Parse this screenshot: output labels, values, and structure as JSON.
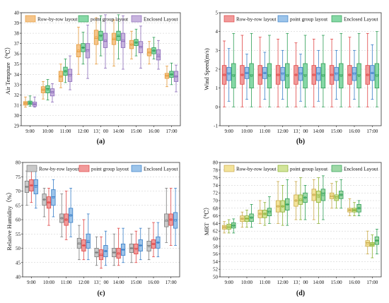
{
  "chart_data": [
    {
      "type": "box",
      "panel_label": "(a)",
      "ylabel": "Air Tempture（℃）",
      "ylim": [
        29,
        40
      ],
      "yticks": [
        29,
        30,
        31,
        32,
        33,
        34,
        35,
        36,
        37,
        38,
        39,
        40
      ],
      "categories": [
        "9:00",
        "10:00",
        "11:00",
        "12:00",
        "13：00",
        "14:00",
        "15:00",
        "16:00",
        "17:00"
      ],
      "legend": [
        {
          "name": "Row-by-row layout",
          "color": "#f5c58a"
        },
        {
          "name": "point group layout",
          "color": "#86d8a6"
        },
        {
          "name": "Enclosed Layout",
          "color": "#c7b3de"
        }
      ],
      "series": [
        {
          "name": "Row-by-row layout",
          "color": "#f5c58a",
          "stroke": "#e59a3a",
          "boxes": [
            [
              30.8,
              31.0,
              31.2,
              31.35,
              31.8
            ],
            [
              31.6,
              32.2,
              32.5,
              32.8,
              33.3
            ],
            [
              32.7,
              33.3,
              33.8,
              34.3,
              35.0
            ],
            [
              34.0,
              35.7,
              36.2,
              36.9,
              38.6
            ],
            [
              35.0,
              36.9,
              37.5,
              38.3,
              39.5
            ],
            [
              34.8,
              36.9,
              37.4,
              38.0,
              39.3
            ],
            [
              35.5,
              36.5,
              36.9,
              37.3,
              38.2
            ],
            [
              35.0,
              35.8,
              36.1,
              36.5,
              37.2
            ],
            [
              32.8,
              33.6,
              33.9,
              34.1,
              34.8
            ]
          ]
        },
        {
          "name": "point group layout",
          "color": "#86d8a6",
          "stroke": "#2e9e55",
          "boxes": [
            [
              30.9,
              31.05,
              31.2,
              31.4,
              31.9
            ],
            [
              31.5,
              32.2,
              32.6,
              32.9,
              33.5
            ],
            [
              33.2,
              33.9,
              34.3,
              34.7,
              35.5
            ],
            [
              35.0,
              36.2,
              36.6,
              37.0,
              38.1
            ],
            [
              35.8,
              37.3,
              37.8,
              38.2,
              39.7
            ],
            [
              35.5,
              37.3,
              37.7,
              38.2,
              39.8
            ],
            [
              35.8,
              36.8,
              37.1,
              37.4,
              38.4
            ],
            [
              35.5,
              36.0,
              36.3,
              36.6,
              37.6
            ],
            [
              33.0,
              33.7,
              34.0,
              34.3,
              35.1
            ]
          ]
        },
        {
          "name": "Enclosed Layout",
          "color": "#c7b3de",
          "stroke": "#8a6ab8",
          "boxes": [
            [
              30.8,
              30.9,
              31.1,
              31.3,
              31.8
            ],
            [
              31.3,
              31.9,
              32.3,
              32.6,
              33.1
            ],
            [
              32.5,
              33.3,
              34.0,
              34.5,
              35.8
            ],
            [
              33.6,
              35.6,
              36.4,
              37.0,
              38.8
            ],
            [
              34.6,
              36.6,
              37.2,
              38.0,
              39.8
            ],
            [
              34.5,
              36.6,
              37.2,
              38.0,
              39.7
            ],
            [
              34.6,
              36.1,
              36.7,
              37.2,
              38.7
            ],
            [
              34.5,
              35.4,
              35.7,
              36.4,
              37.3
            ],
            [
              32.3,
              33.3,
              33.8,
              34.3,
              34.9
            ]
          ]
        }
      ]
    },
    {
      "type": "box",
      "panel_label": "(b)",
      "ylabel": "Wind Speed(m/s)",
      "ylim": [
        -1,
        5
      ],
      "yticks": [
        -1,
        0,
        1,
        2,
        3,
        4,
        5
      ],
      "categories": [
        "9:00",
        "10:00",
        "11:00",
        "12:00",
        "13：00",
        "14:00",
        "15:00",
        "16:00",
        "17:00"
      ],
      "legend": [
        {
          "name": "Row-by-row layout",
          "color": "#f19a9a"
        },
        {
          "name": "point group layout",
          "color": "#9cc4ea"
        },
        {
          "name": "Enclosed Layout",
          "color": "#86d8a6"
        }
      ],
      "series": [
        {
          "name": "Row-by-row layout",
          "color": "#f19a9a",
          "stroke": "#e04545",
          "boxes": [
            [
              0.0,
              1.2,
              1.7,
              2.2,
              3.5
            ],
            [
              0.0,
              1.2,
              1.7,
              2.2,
              3.8
            ],
            [
              0.0,
              1.2,
              1.7,
              2.2,
              3.7
            ],
            [
              0.0,
              1.2,
              1.7,
              2.2,
              3.6
            ],
            [
              0.0,
              1.2,
              1.7,
              2.2,
              3.4
            ],
            [
              0.0,
              1.2,
              1.7,
              2.2,
              3.6
            ],
            [
              0.0,
              1.2,
              1.7,
              2.2,
              3.6
            ],
            [
              0.0,
              1.2,
              1.7,
              2.2,
              3.7
            ],
            [
              0.0,
              1.2,
              1.7,
              2.2,
              3.9
            ]
          ]
        },
        {
          "name": "point group layout",
          "color": "#9cc4ea",
          "stroke": "#3a7fc8",
          "boxes": [
            [
              0.3,
              1.4,
              1.8,
              2.1,
              3.1
            ],
            [
              0.4,
              1.5,
              1.8,
              2.1,
              2.8
            ],
            [
              0.4,
              1.5,
              1.8,
              2.1,
              2.9
            ],
            [
              0.4,
              1.4,
              1.8,
              2.1,
              3.0
            ],
            [
              0.3,
              1.4,
              1.8,
              2.1,
              2.8
            ],
            [
              0.3,
              1.4,
              1.8,
              2.1,
              3.0
            ],
            [
              0.4,
              1.4,
              1.8,
              2.1,
              3.0
            ],
            [
              0.4,
              1.4,
              1.8,
              2.1,
              3.0
            ],
            [
              0.4,
              1.4,
              1.8,
              2.2,
              3.3
            ]
          ]
        },
        {
          "name": "Enclosed Layout",
          "color": "#86d8a6",
          "stroke": "#2e9e55",
          "boxes": [
            [
              0.0,
              1.0,
              1.7,
              2.3,
              3.9
            ],
            [
              0.0,
              1.0,
              1.7,
              2.3,
              3.9
            ],
            [
              0.0,
              1.0,
              1.7,
              2.3,
              3.8
            ],
            [
              0.0,
              1.0,
              1.7,
              2.3,
              3.9
            ],
            [
              0.0,
              1.0,
              1.7,
              2.3,
              3.8
            ],
            [
              0.0,
              1.0,
              1.7,
              2.3,
              3.8
            ],
            [
              0.0,
              1.0,
              1.7,
              2.3,
              3.9
            ],
            [
              0.0,
              1.0,
              1.7,
              2.3,
              3.9
            ],
            [
              0.0,
              1.0,
              1.7,
              2.3,
              4.0
            ]
          ]
        }
      ]
    },
    {
      "type": "box",
      "panel_label": "(c)",
      "ylabel": "Relative Humidity（%）",
      "ylim": [
        40,
        80
      ],
      "yticks": [
        40,
        45,
        50,
        55,
        60,
        65,
        70,
        75,
        80
      ],
      "categories": [
        "9:00",
        "10:00",
        "11:00",
        "12:00",
        "13：00",
        "14:00",
        "15:00",
        "16:00",
        "17:00"
      ],
      "legend": [
        {
          "name": "Row-by-row layout",
          "color": "#c9c9c9"
        },
        {
          "name": "point group layout",
          "color": "#f19a9a"
        },
        {
          "name": "Enclosed Layout",
          "color": "#9cc4ea"
        }
      ],
      "series": [
        {
          "name": "Row-by-row layout",
          "color": "#c9c9c9",
          "stroke": "#7a7a7a",
          "boxes": [
            [
              65,
              69.5,
              71.5,
              73.5,
              77
            ],
            [
              61,
              65,
              67,
              69,
              71
            ],
            [
              54,
              59,
              60.5,
              62,
              69
            ],
            [
              46,
              50,
              51.5,
              53.5,
              58
            ],
            [
              44,
              47,
              48.5,
              50,
              54
            ],
            [
              44,
              47,
              48.5,
              50,
              55
            ],
            [
              45,
              48.5,
              50,
              51.5,
              55
            ],
            [
              46,
              49,
              51,
              52.5,
              57
            ],
            [
              52,
              57.5,
              59.5,
              62,
              71
            ]
          ]
        },
        {
          "name": "point group layout",
          "color": "#f19a9a",
          "stroke": "#e04545",
          "boxes": [
            [
              66,
              70,
              72,
              74,
              77
            ],
            [
              58,
              64,
              66,
              68,
              71
            ],
            [
              53,
              58,
              60,
              62,
              70
            ],
            [
              46,
              49,
              51,
              53,
              60
            ],
            [
              43,
              46,
              47.5,
              49.5,
              54
            ],
            [
              44,
              46.5,
              48,
              50,
              57
            ],
            [
              45,
              48,
              50,
              51.5,
              56
            ],
            [
              47,
              50,
              51.5,
              53,
              59
            ],
            [
              51,
              58,
              60,
              62,
              71
            ]
          ]
        },
        {
          "name": "Enclosed Layout",
          "color": "#9cc4ea",
          "stroke": "#3a7fc8",
          "boxes": [
            [
              64,
              69,
              72,
              74,
              78
            ],
            [
              61,
              65,
              68,
              70.5,
              74
            ],
            [
              54,
              59,
              61.5,
              64,
              71
            ],
            [
              46,
              50,
              52,
              55,
              62
            ],
            [
              44,
              47,
              49,
              51,
              56
            ],
            [
              45,
              47.5,
              49.5,
              51.5,
              57
            ],
            [
              46,
              49,
              51,
              53,
              57
            ],
            [
              47,
              50,
              52,
              54,
              59
            ],
            [
              51,
              57,
              60,
              62.5,
              71
            ]
          ]
        }
      ]
    },
    {
      "type": "box",
      "panel_label": "(d)",
      "ylabel": "MRT（℃）",
      "ylim": [
        50,
        80
      ],
      "yticks": [
        50,
        52,
        54,
        56,
        58,
        60,
        62,
        64,
        66,
        68,
        70,
        72,
        74,
        76,
        78,
        80
      ],
      "categories": [
        "9:00",
        "10:00",
        "11:00",
        "12:00",
        "13：00",
        "14:00",
        "15:00",
        "16:00",
        "17:00"
      ],
      "legend": [
        {
          "name": "Row-by-row layout",
          "color": "#f3e39a"
        },
        {
          "name": "point group layout",
          "color": "#d2e49a"
        },
        {
          "name": "Enclosed Layout",
          "color": "#9ed8a6"
        }
      ],
      "series": [
        {
          "name": "Row-by-row layout",
          "color": "#f3e39a",
          "stroke": "#c9a94a",
          "boxes": [
            [
              61.5,
              62.5,
              63,
              63.5,
              64.5
            ],
            [
              63,
              64.5,
              65.2,
              66,
              67
            ],
            [
              64,
              65.5,
              66.5,
              67.5,
              70
            ],
            [
              64,
              67,
              68.5,
              70,
              75
            ],
            [
              65,
              68.5,
              70,
              71.5,
              75
            ],
            [
              65,
              70,
              71.5,
              73,
              75.5
            ],
            [
              68,
              70.5,
              71,
              72,
              74.5
            ],
            [
              66,
              67,
              67.5,
              68,
              70.5
            ],
            [
              56,
              58,
              59,
              59.5,
              62
            ]
          ]
        },
        {
          "name": "point group layout",
          "color": "#d2e49a",
          "stroke": "#8ab030",
          "boxes": [
            [
              61.5,
              62.5,
              63,
              63.8,
              65
            ],
            [
              63,
              64.5,
              65.3,
              66,
              67.5
            ],
            [
              63.5,
              65.5,
              66.5,
              67.5,
              69.5
            ],
            [
              63.5,
              67,
              68.5,
              70,
              74
            ],
            [
              65,
              69,
              70,
              71.5,
              76
            ],
            [
              64,
              69.5,
              71.5,
              72.5,
              76
            ],
            [
              68,
              70,
              71,
              71.5,
              75
            ],
            [
              66,
              67,
              67.5,
              68,
              69.5
            ],
            [
              55,
              58,
              58.5,
              59,
              61
            ]
          ]
        },
        {
          "name": "Enclosed Layout",
          "color": "#9ed8a6",
          "stroke": "#2e9e55",
          "boxes": [
            [
              61.5,
              62.8,
              63.4,
              64.2,
              65.2
            ],
            [
              63,
              64.5,
              65.6,
              66.5,
              69
            ],
            [
              64,
              66,
              67.2,
              68,
              71
            ],
            [
              63.5,
              67.5,
              69,
              70.5,
              75.5
            ],
            [
              65,
              69.5,
              70.8,
              72,
              74
            ],
            [
              65,
              70,
              72,
              73,
              76.5
            ],
            [
              68,
              70.5,
              71.5,
              72.5,
              75.5
            ],
            [
              66,
              67,
              68,
              69,
              70
            ],
            [
              56,
              58.5,
              59.5,
              60.5,
              62.5
            ]
          ]
        }
      ]
    }
  ]
}
